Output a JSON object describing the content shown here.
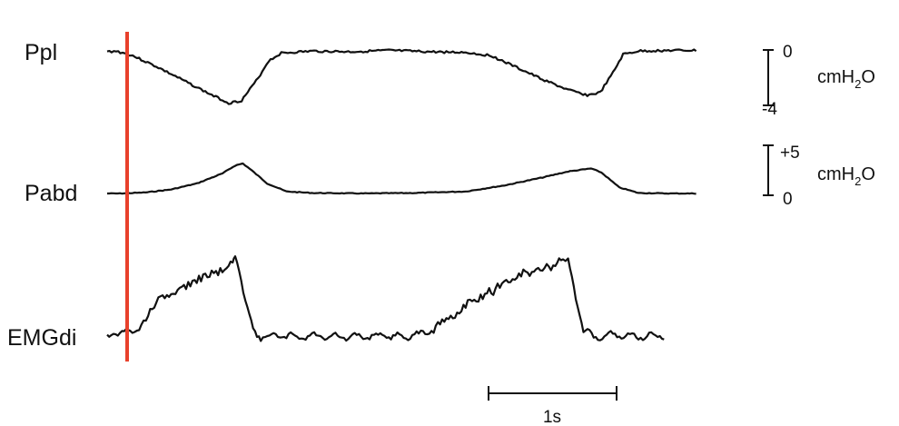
{
  "chart_data": {
    "type": "line",
    "title": "",
    "xlabel": "",
    "x_units": "s",
    "time_scale_bar": {
      "duration": 1,
      "label": "1s"
    },
    "marker": {
      "label": "",
      "color": "#e8412c",
      "time": 0.07
    },
    "series": [
      {
        "name": "Ppl",
        "unit": {
          "base": "cmH",
          "sub": "2",
          "tail": "O"
        },
        "scale_bar": {
          "top_label": "0",
          "bottom_label": "-4",
          "range": [
            -4,
            0
          ]
        },
        "color": "#111111",
        "points": [
          [
            0.0,
            0.0
          ],
          [
            0.07,
            0.05
          ],
          [
            0.2,
            -0.3
          ],
          [
            0.4,
            -1.2
          ],
          [
            0.6,
            -2.2
          ],
          [
            0.8,
            -3.2
          ],
          [
            0.95,
            -3.9
          ],
          [
            1.05,
            -3.7
          ],
          [
            1.18,
            -2.0
          ],
          [
            1.26,
            -0.7
          ],
          [
            1.36,
            -0.1
          ],
          [
            1.6,
            0.05
          ],
          [
            1.9,
            0.0
          ],
          [
            2.2,
            0.1
          ],
          [
            2.5,
            0.0
          ],
          [
            2.8,
            -0.05
          ],
          [
            3.0,
            -0.3
          ],
          [
            3.2,
            -1.2
          ],
          [
            3.4,
            -2.1
          ],
          [
            3.6,
            -2.9
          ],
          [
            3.75,
            -3.3
          ],
          [
            3.85,
            -3.1
          ],
          [
            3.95,
            -1.6
          ],
          [
            4.03,
            -0.2
          ],
          [
            4.15,
            0.05
          ],
          [
            4.4,
            0.1
          ],
          [
            4.6,
            0.1
          ]
        ]
      },
      {
        "name": "Pabd",
        "unit": {
          "base": "cmH",
          "sub": "2",
          "tail": "O"
        },
        "scale_bar": {
          "top_label": "+5",
          "bottom_label": "0",
          "range": [
            0,
            5
          ]
        },
        "color": "#111111",
        "points": [
          [
            0.0,
            0.0
          ],
          [
            0.1,
            0.0
          ],
          [
            0.3,
            0.1
          ],
          [
            0.5,
            0.4
          ],
          [
            0.7,
            1.0
          ],
          [
            0.9,
            2.0
          ],
          [
            1.0,
            2.8
          ],
          [
            1.06,
            3.0
          ],
          [
            1.13,
            2.3
          ],
          [
            1.25,
            1.0
          ],
          [
            1.4,
            0.2
          ],
          [
            1.6,
            0.05
          ],
          [
            2.0,
            0.0
          ],
          [
            2.4,
            0.05
          ],
          [
            2.8,
            0.2
          ],
          [
            3.1,
            0.8
          ],
          [
            3.4,
            1.6
          ],
          [
            3.6,
            2.2
          ],
          [
            3.78,
            2.5
          ],
          [
            3.86,
            2.1
          ],
          [
            4.0,
            0.6
          ],
          [
            4.15,
            0.05
          ],
          [
            4.4,
            0.0
          ],
          [
            4.6,
            0.0
          ]
        ]
      },
      {
        "name": "EMGdi",
        "unit": null,
        "scale_bar": null,
        "color": "#111111",
        "points": [
          [
            0.0,
            0.0
          ],
          [
            0.05,
            0.02
          ],
          [
            0.1,
            -0.02
          ],
          [
            0.18,
            0.08
          ],
          [
            0.25,
            0.05
          ],
          [
            0.32,
            0.25
          ],
          [
            0.4,
            0.45
          ],
          [
            0.5,
            0.55
          ],
          [
            0.6,
            0.62
          ],
          [
            0.7,
            0.7
          ],
          [
            0.8,
            0.78
          ],
          [
            0.9,
            0.84
          ],
          [
            0.98,
            0.95
          ],
          [
            1.0,
            1.0
          ],
          [
            1.03,
            0.85
          ],
          [
            1.08,
            0.45
          ],
          [
            1.14,
            0.05
          ],
          [
            1.2,
            -0.04
          ],
          [
            1.3,
            -0.02
          ],
          [
            1.5,
            -0.03
          ],
          [
            1.7,
            -0.02
          ],
          [
            1.9,
            -0.04
          ],
          [
            2.1,
            -0.02
          ],
          [
            2.3,
            -0.03
          ],
          [
            2.45,
            0.0
          ],
          [
            2.6,
            0.12
          ],
          [
            2.75,
            0.3
          ],
          [
            2.9,
            0.48
          ],
          [
            3.05,
            0.62
          ],
          [
            3.2,
            0.74
          ],
          [
            3.35,
            0.84
          ],
          [
            3.5,
            0.9
          ],
          [
            3.56,
            1.0
          ],
          [
            3.6,
            0.95
          ],
          [
            3.66,
            0.5
          ],
          [
            3.72,
            0.05
          ],
          [
            3.8,
            -0.03
          ],
          [
            3.95,
            -0.01
          ],
          [
            4.1,
            -0.03
          ],
          [
            4.25,
            -0.02
          ],
          [
            4.35,
            -0.02
          ]
        ]
      }
    ]
  }
}
